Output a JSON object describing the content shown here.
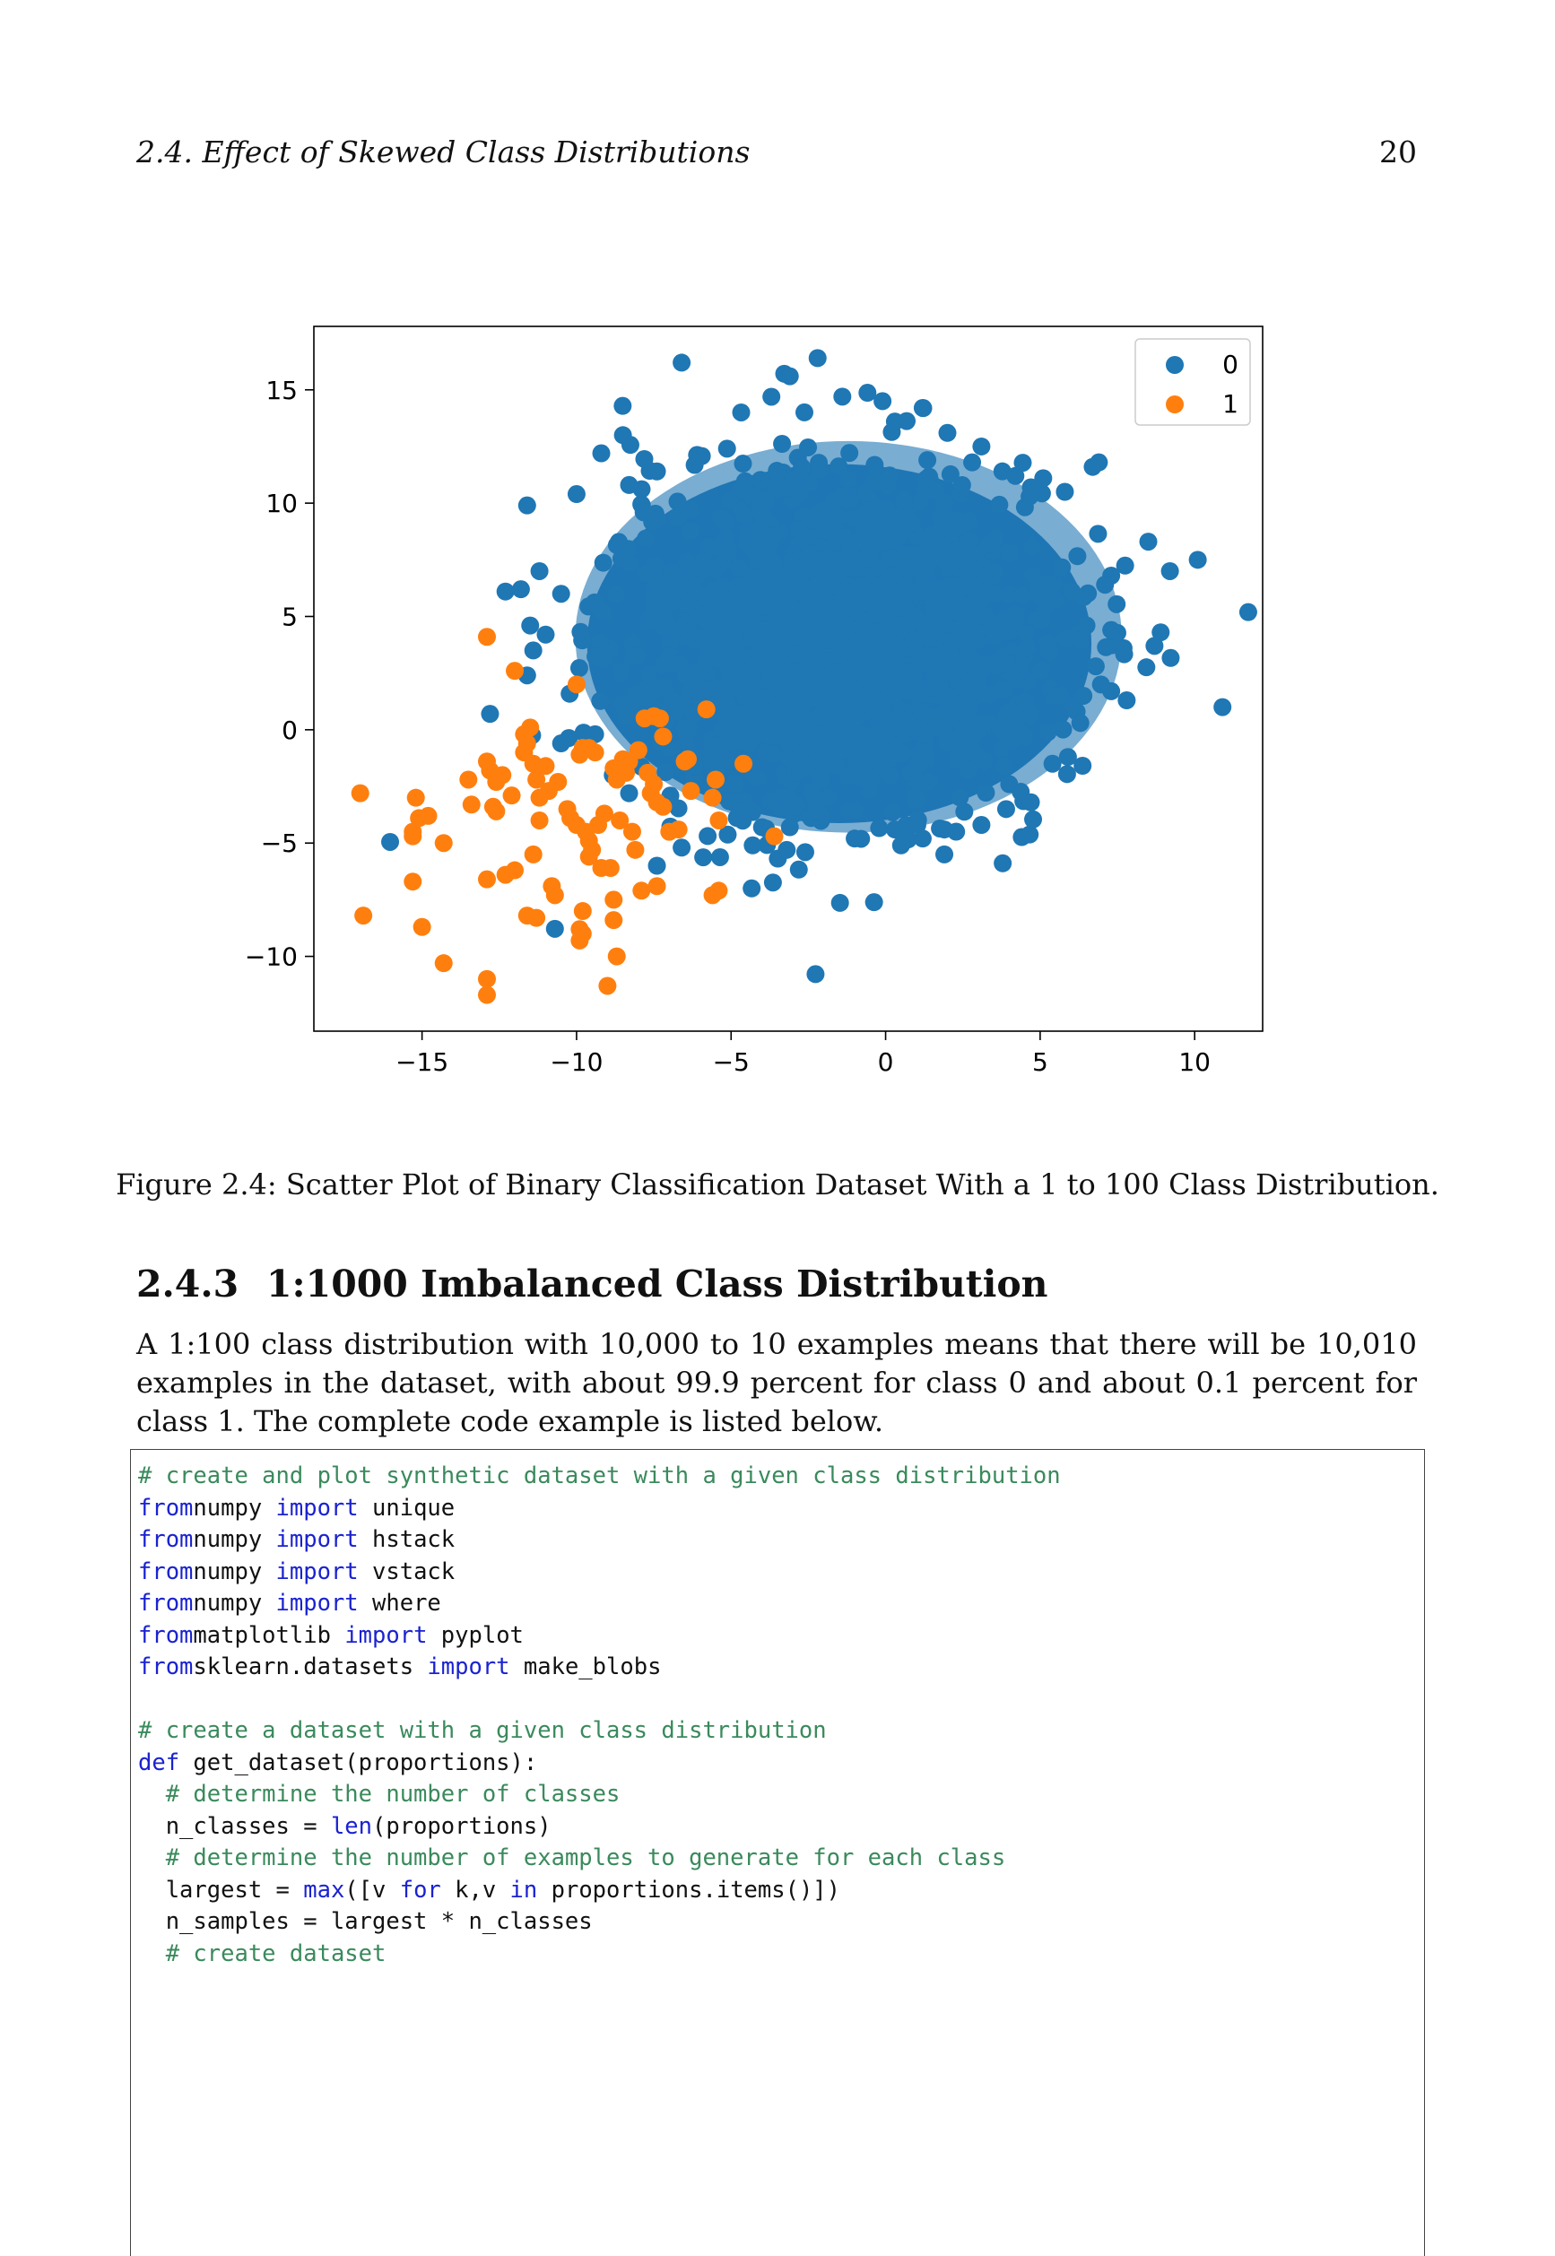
{
  "header": {
    "running_title": "2.4. Effect of Skewed Class Distributions",
    "page_number": "20"
  },
  "chart_data": {
    "type": "scatter",
    "title": "",
    "xlabel": "",
    "ylabel": "",
    "xlim": [
      -18.5,
      12.2
    ],
    "ylim": [
      -13.3,
      17.8
    ],
    "x_ticks": [
      "−15",
      "−10",
      "−5",
      "0",
      "5",
      "10"
    ],
    "y_ticks": [
      "15",
      "10",
      "5",
      "0",
      "−5",
      "−10"
    ],
    "grid": false,
    "legend_position": "top-right",
    "series": [
      {
        "name": "0",
        "color": "#1f77b4",
        "center": [
          -1.5,
          3.8
        ],
        "spread": [
          3.4,
          3.6
        ],
        "n_points": 10000,
        "points": [
          [
            -6.6,
            16.2
          ],
          [
            -3.1,
            15.6
          ],
          [
            -2.2,
            16.4
          ],
          [
            -1.4,
            14.7
          ],
          [
            -0.1,
            14.5
          ],
          [
            1.2,
            14.2
          ],
          [
            0.3,
            13.6
          ],
          [
            2.0,
            13.1
          ],
          [
            -8.5,
            13.0
          ],
          [
            -9.2,
            12.2
          ],
          [
            3.1,
            12.5
          ],
          [
            2.8,
            11.8
          ],
          [
            6.9,
            11.8
          ],
          [
            6.7,
            11.6
          ],
          [
            5.1,
            11.1
          ],
          [
            4.2,
            11.2
          ],
          [
            -10.0,
            10.4
          ],
          [
            -11.6,
            9.9
          ],
          [
            5.8,
            10.5
          ],
          [
            4.7,
            10.7
          ],
          [
            -7.4,
            11.4
          ],
          [
            -8.3,
            10.8
          ],
          [
            8.5,
            8.3
          ],
          [
            10.1,
            7.5
          ],
          [
            9.2,
            7.0
          ],
          [
            7.3,
            6.8
          ],
          [
            7.1,
            6.4
          ],
          [
            -11.2,
            7.0
          ],
          [
            -12.3,
            6.1
          ],
          [
            -11.8,
            6.2
          ],
          [
            -10.5,
            6.0
          ],
          [
            -11.5,
            4.6
          ],
          [
            -11.0,
            4.2
          ],
          [
            -11.4,
            3.5
          ],
          [
            -11.6,
            2.4
          ],
          [
            8.9,
            4.3
          ],
          [
            8.7,
            3.7
          ],
          [
            7.7,
            3.6
          ],
          [
            7.3,
            4.4
          ],
          [
            6.5,
            4.6
          ],
          [
            6.8,
            2.8
          ],
          [
            6.4,
            1.5
          ],
          [
            6.3,
            0.3
          ],
          [
            7.3,
            1.7
          ],
          [
            7.8,
            1.3
          ],
          [
            10.9,
            1.0
          ],
          [
            -12.8,
            0.7
          ],
          [
            -10.5,
            -0.6
          ],
          [
            -9.4,
            -0.2
          ],
          [
            -7.3,
            -0.5
          ],
          [
            -8.3,
            -2.8
          ],
          [
            -7.0,
            -3.1
          ],
          [
            -7.4,
            -6.0
          ],
          [
            -6.6,
            -5.2
          ],
          [
            -4.3,
            -5.1
          ],
          [
            -4.0,
            -4.3
          ],
          [
            -3.1,
            -4.3
          ],
          [
            -3.2,
            -5.3
          ],
          [
            -2.6,
            -5.4
          ],
          [
            -1.0,
            -4.8
          ],
          [
            0.3,
            -4.4
          ],
          [
            0.5,
            -5.1
          ],
          [
            1.2,
            -4.8
          ],
          [
            1.9,
            -4.4
          ],
          [
            1.9,
            -5.5
          ],
          [
            3.1,
            -4.2
          ],
          [
            3.9,
            -3.5
          ],
          [
            4.7,
            -3.2
          ],
          [
            5.4,
            -1.5
          ],
          [
            5.9,
            -1.2
          ],
          [
            4.0,
            -2.4
          ]
        ]
      },
      {
        "name": "1",
        "color": "#ff7f0e",
        "n_points": 100,
        "points": [
          [
            -17.0,
            -2.8
          ],
          [
            -16.9,
            -8.2
          ],
          [
            -15.2,
            -3.0
          ],
          [
            -15.1,
            -3.9
          ],
          [
            -15.3,
            -4.5
          ],
          [
            -14.8,
            -3.8
          ],
          [
            -15.3,
            -4.7
          ],
          [
            -15.3,
            -6.7
          ],
          [
            -15.0,
            -8.7
          ],
          [
            -14.3,
            -5.0
          ],
          [
            -14.3,
            -10.3
          ],
          [
            -13.5,
            -2.2
          ],
          [
            -13.4,
            -3.3
          ],
          [
            -12.8,
            -1.8
          ],
          [
            -12.6,
            -2.3
          ],
          [
            -12.9,
            -1.4
          ],
          [
            -12.7,
            -3.4
          ],
          [
            -12.6,
            -3.6
          ],
          [
            -12.9,
            4.1
          ],
          [
            -12.0,
            2.6
          ],
          [
            -12.9,
            -6.6
          ],
          [
            -12.3,
            -6.4
          ],
          [
            -12.0,
            -6.2
          ],
          [
            -12.9,
            -11.0
          ],
          [
            -12.9,
            -11.7
          ],
          [
            -11.7,
            -1.0
          ],
          [
            -11.7,
            -0.2
          ],
          [
            -11.5,
            0.1
          ],
          [
            -11.6,
            -0.6
          ],
          [
            -11.4,
            -1.5
          ],
          [
            -11.3,
            -2.2
          ],
          [
            -11.2,
            -3.0
          ],
          [
            -11.2,
            -4.0
          ],
          [
            -11.4,
            -5.5
          ],
          [
            -11.6,
            -8.2
          ],
          [
            -11.3,
            -8.3
          ],
          [
            -10.9,
            -2.7
          ],
          [
            -10.6,
            -2.3
          ],
          [
            -10.2,
            -3.9
          ],
          [
            -10.0,
            2.0
          ],
          [
            -9.9,
            -1.1
          ],
          [
            -9.8,
            -0.8
          ],
          [
            -9.6,
            -0.8
          ],
          [
            -10.0,
            -4.2
          ],
          [
            -9.7,
            -4.5
          ],
          [
            -9.6,
            -4.9
          ],
          [
            -9.6,
            -5.6
          ],
          [
            -9.5,
            -5.3
          ],
          [
            -10.8,
            -6.9
          ],
          [
            -10.7,
            -7.3
          ],
          [
            -9.8,
            -8.0
          ],
          [
            -9.9,
            -8.8
          ],
          [
            -9.9,
            -9.3
          ],
          [
            -9.8,
            -9.0
          ],
          [
            -9.3,
            -4.2
          ],
          [
            -9.2,
            -6.1
          ],
          [
            -8.9,
            -6.1
          ],
          [
            -8.8,
            -8.4
          ],
          [
            -8.7,
            -10.0
          ],
          [
            -9.0,
            -11.3
          ],
          [
            -8.8,
            -7.5
          ],
          [
            -9.1,
            -3.7
          ],
          [
            -8.7,
            -2.2
          ],
          [
            -8.5,
            -1.3
          ],
          [
            -8.8,
            -1.7
          ],
          [
            -8.4,
            -1.9
          ],
          [
            -8.3,
            -1.4
          ],
          [
            -8.2,
            -4.5
          ],
          [
            -8.1,
            -5.3
          ],
          [
            -7.9,
            -7.1
          ],
          [
            -7.8,
            0.5
          ],
          [
            -7.5,
            0.6
          ],
          [
            -7.3,
            0.5
          ],
          [
            -7.7,
            -1.9
          ],
          [
            -7.5,
            -2.4
          ],
          [
            -7.4,
            -3.2
          ],
          [
            -7.2,
            -3.4
          ],
          [
            -7.0,
            -4.5
          ],
          [
            -7.4,
            -6.9
          ],
          [
            -6.7,
            -4.4
          ],
          [
            -6.5,
            -1.4
          ],
          [
            -6.4,
            -1.3
          ],
          [
            -5.8,
            0.9
          ],
          [
            -5.5,
            -2.2
          ],
          [
            -5.6,
            -3.0
          ],
          [
            -5.4,
            -4.0
          ],
          [
            -5.6,
            -7.3
          ],
          [
            -5.4,
            -7.1
          ],
          [
            -4.6,
            -1.5
          ],
          [
            -3.6,
            -4.7
          ],
          [
            -12.4,
            -2.0
          ],
          [
            -11.0,
            -1.6
          ],
          [
            -8.0,
            -0.9
          ],
          [
            -7.6,
            -2.8
          ],
          [
            -10.3,
            -3.5
          ],
          [
            -8.6,
            -4.0
          ],
          [
            -9.4,
            -1.0
          ],
          [
            -7.2,
            -0.3
          ],
          [
            -6.3,
            -2.7
          ],
          [
            -12.1,
            -2.9
          ]
        ]
      }
    ]
  },
  "figure_caption": "Figure 2.4: Scatter Plot of Binary Classification Dataset With a 1 to 100 Class Distribution.",
  "section": {
    "number": "2.4.3",
    "title": "1:1000 Imbalanced Class Distribution"
  },
  "paragraph": "A 1:100 class distribution with 10,000 to 10 examples means that there will be 10,010 examples in the dataset, with about 99.9 percent for class 0 and about 0.1 percent for class 1. The complete code example is listed below.",
  "code_lines": [
    [
      [
        "cm",
        "# create and plot synthetic dataset with a given class distribution"
      ]
    ],
    [
      [
        "kw",
        "from"
      ],
      [
        "",
        "numpy "
      ],
      [
        "kw",
        "import"
      ],
      [
        "",
        " unique"
      ]
    ],
    [
      [
        "kw",
        "from"
      ],
      [
        "",
        "numpy "
      ],
      [
        "kw",
        "import"
      ],
      [
        "",
        " hstack"
      ]
    ],
    [
      [
        "kw",
        "from"
      ],
      [
        "",
        "numpy "
      ],
      [
        "kw",
        "import"
      ],
      [
        "",
        " vstack"
      ]
    ],
    [
      [
        "kw",
        "from"
      ],
      [
        "",
        "numpy "
      ],
      [
        "kw",
        "import"
      ],
      [
        "",
        " where"
      ]
    ],
    [
      [
        "kw",
        "from"
      ],
      [
        "",
        "matplotlib "
      ],
      [
        "kw",
        "import"
      ],
      [
        "",
        " pyplot"
      ]
    ],
    [
      [
        "kw",
        "from"
      ],
      [
        "",
        "sklearn.datasets "
      ],
      [
        "kw",
        "import"
      ],
      [
        "",
        " make_blobs"
      ]
    ],
    [],
    [
      [
        "cm",
        "# create a dataset with a given class distribution"
      ]
    ],
    [
      [
        "kw",
        "def"
      ],
      [
        "",
        " get_dataset(proportions):"
      ]
    ],
    [
      [
        "",
        "  "
      ],
      [
        "cm",
        "# determine the number of classes"
      ]
    ],
    [
      [
        "",
        "  n_classes = "
      ],
      [
        "kw",
        "len"
      ],
      [
        "",
        "(proportions)"
      ]
    ],
    [
      [
        "",
        "  "
      ],
      [
        "cm",
        "# determine the number of examples to generate for each class"
      ]
    ],
    [
      [
        "",
        "  largest = "
      ],
      [
        "kw",
        "max"
      ],
      [
        "",
        "([v "
      ],
      [
        "kw",
        "for"
      ],
      [
        "",
        " k,v "
      ],
      [
        "kw",
        "in"
      ],
      [
        "",
        " proportions.items()])"
      ]
    ],
    [
      [
        "",
        "  n_samples = largest * n_classes"
      ]
    ],
    [
      [
        "",
        "  "
      ],
      [
        "cm",
        "# create dataset"
      ]
    ]
  ]
}
